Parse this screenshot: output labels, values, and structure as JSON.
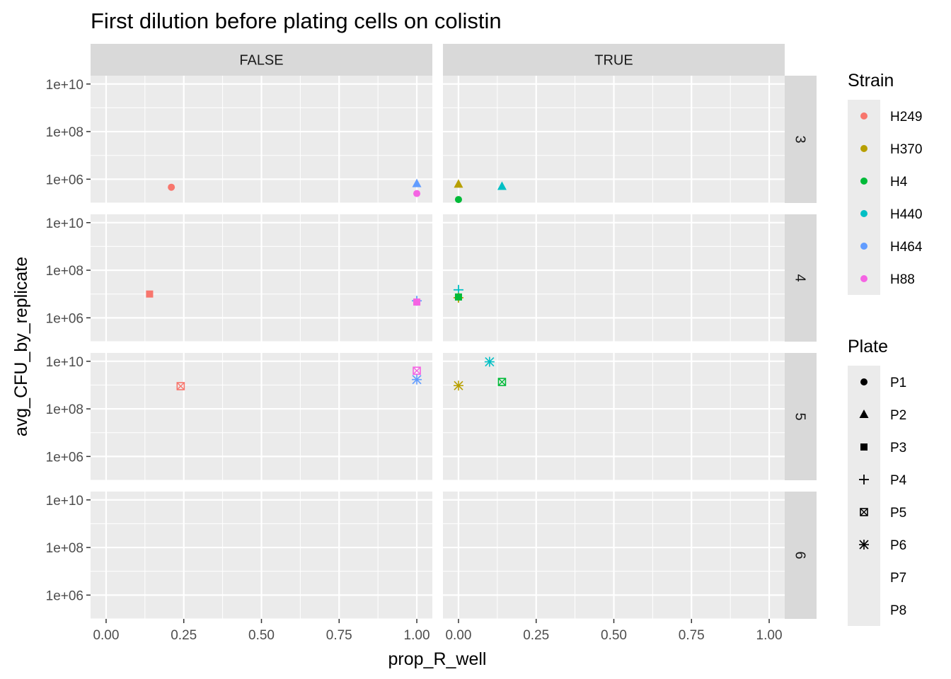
{
  "chart_data": {
    "type": "scatter",
    "title": "First dilution before plating cells on colistin",
    "xlabel": "prop_R_well",
    "ylabel": "avg_CFU_by_replicate",
    "y_scale": "log10",
    "facet_cols": [
      "FALSE",
      "TRUE"
    ],
    "facet_rows": [
      "3",
      "4",
      "5",
      "6"
    ],
    "panels": {
      "FALSE": {
        "xlim": [
          -0.05,
          1.05
        ],
        "xticks": [
          "0.00",
          "0.25",
          "0.50",
          "0.75",
          "1.00"
        ]
      },
      "TRUE": {
        "xlim": [
          -0.05,
          1.05
        ],
        "xticks": [
          "0.00",
          "0.25",
          "0.50",
          "0.75",
          "1.00"
        ]
      }
    },
    "ylim_log10": [
      5.0,
      10.35
    ],
    "yticks": [
      "1e+06",
      "1e+08",
      "1e+10"
    ],
    "grid": true,
    "legend_position": "right",
    "legend_strain_title": "Strain",
    "legend_plate_title": "Plate",
    "strains": [
      {
        "name": "H249",
        "color": "#F8766D"
      },
      {
        "name": "H370",
        "color": "#B79F00"
      },
      {
        "name": "H4",
        "color": "#00BA38"
      },
      {
        "name": "H440",
        "color": "#00BFC4"
      },
      {
        "name": "H464",
        "color": "#619CFF"
      },
      {
        "name": "H88",
        "color": "#F564E3"
      }
    ],
    "plates": [
      {
        "name": "P1",
        "shape": "circle"
      },
      {
        "name": "P2",
        "shape": "triangle"
      },
      {
        "name": "P3",
        "shape": "square"
      },
      {
        "name": "P4",
        "shape": "plus"
      },
      {
        "name": "P5",
        "shape": "square-cross"
      },
      {
        "name": "P6",
        "shape": "asterisk"
      },
      {
        "name": "P7",
        "shape": "none"
      },
      {
        "name": "P8",
        "shape": "none"
      }
    ],
    "points": [
      {
        "col": "FALSE",
        "row": "3",
        "strain": "H249",
        "plate": "P1",
        "x": 0.21,
        "y": 460000.0
      },
      {
        "col": "FALSE",
        "row": "3",
        "strain": "H464",
        "plate": "P2",
        "x": 1.0,
        "y": 650000.0
      },
      {
        "col": "FALSE",
        "row": "3",
        "strain": "H88",
        "plate": "P1",
        "x": 1.0,
        "y": 250000.0
      },
      {
        "col": "TRUE",
        "row": "3",
        "strain": "H370",
        "plate": "P2",
        "x": 0.0,
        "y": 620000.0
      },
      {
        "col": "TRUE",
        "row": "3",
        "strain": "H440",
        "plate": "P2",
        "x": 0.14,
        "y": 500000.0
      },
      {
        "col": "TRUE",
        "row": "3",
        "strain": "H4",
        "plate": "P1",
        "x": 0.0,
        "y": 140000.0
      },
      {
        "col": "FALSE",
        "row": "4",
        "strain": "H249",
        "plate": "P3",
        "x": 0.14,
        "y": 10000000.0
      },
      {
        "col": "FALSE",
        "row": "4",
        "strain": "H464",
        "plate": "P4",
        "x": 1.0,
        "y": 5200000.0
      },
      {
        "col": "FALSE",
        "row": "4",
        "strain": "H88",
        "plate": "P3",
        "x": 1.0,
        "y": 4600000.0
      },
      {
        "col": "TRUE",
        "row": "4",
        "strain": "H440",
        "plate": "P4",
        "x": 0.0,
        "y": 15000000.0
      },
      {
        "col": "TRUE",
        "row": "4",
        "strain": "H370",
        "plate": "P4",
        "x": 0.0,
        "y": 7000000.0
      },
      {
        "col": "TRUE",
        "row": "4",
        "strain": "H4",
        "plate": "P3",
        "x": 0.0,
        "y": 7500000.0
      },
      {
        "col": "FALSE",
        "row": "5",
        "strain": "H249",
        "plate": "P5",
        "x": 0.24,
        "y": 900000000.0
      },
      {
        "col": "FALSE",
        "row": "5",
        "strain": "H88",
        "plate": "P5",
        "x": 1.0,
        "y": 4000000000.0
      },
      {
        "col": "FALSE",
        "row": "5",
        "strain": "H464",
        "plate": "P6",
        "x": 1.0,
        "y": 1700000000.0
      },
      {
        "col": "TRUE",
        "row": "5",
        "strain": "H440",
        "plate": "P6",
        "x": 0.1,
        "y": 9500000000.0
      },
      {
        "col": "TRUE",
        "row": "5",
        "strain": "H4",
        "plate": "P5",
        "x": 0.14,
        "y": 1350000000.0
      },
      {
        "col": "TRUE",
        "row": "5",
        "strain": "H370",
        "plate": "P6",
        "x": 0.0,
        "y": 950000000.0
      }
    ]
  }
}
